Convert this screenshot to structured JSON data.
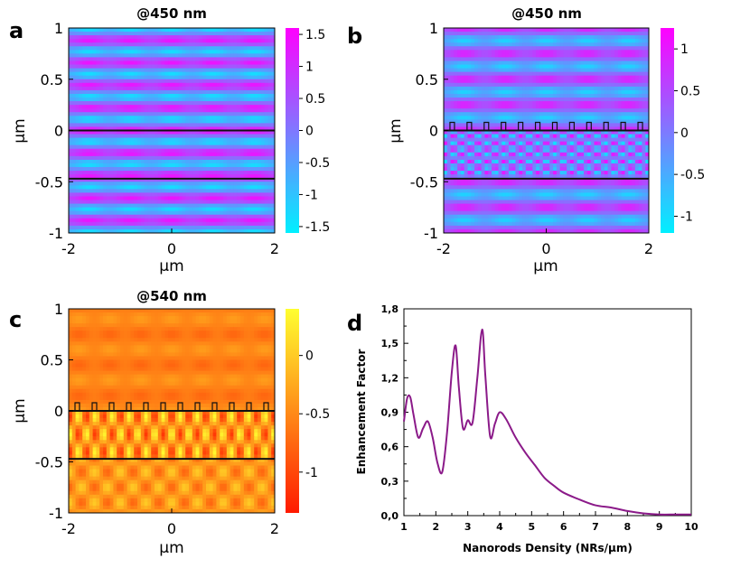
{
  "figure": {
    "panel_labels": [
      "a",
      "b",
      "c",
      "d"
    ]
  },
  "chart_data": [
    {
      "panel": "a",
      "type": "heatmap",
      "title": "@450 nm",
      "xlabel": "μm",
      "ylabel": "μm",
      "xlim": [
        -2,
        2
      ],
      "ylim": [
        -1,
        1
      ],
      "xticks": [
        -2,
        0,
        2
      ],
      "yticks": [
        1,
        0.5,
        0,
        -0.5,
        -1
      ],
      "colorbar": {
        "ticks": [
          1.5,
          1,
          0.5,
          0,
          -0.5,
          -1,
          -1.5
        ],
        "range": [
          -1.6,
          1.6
        ],
        "colors": [
          "#00f0ff",
          "#ff00ff"
        ]
      },
      "interface_lines_y": [
        0,
        -0.47
      ],
      "nanorods": false,
      "field_period_y": 0.22,
      "field_period_x": 0.8
    },
    {
      "panel": "b",
      "type": "heatmap",
      "title": "@450 nm",
      "xlabel": "μm",
      "ylabel": "μm",
      "xlim": [
        -2,
        2
      ],
      "ylim": [
        -1,
        1
      ],
      "xticks": [
        -2,
        0,
        2
      ],
      "yticks": [
        1,
        0.5,
        0,
        -0.5,
        -1
      ],
      "colorbar": {
        "ticks": [
          1,
          0.5,
          0,
          -0.5,
          -1
        ],
        "range": [
          -1.2,
          1.25
        ],
        "colors": [
          "#00f0ff",
          "#ff00ff"
        ]
      },
      "interface_lines_y": [
        0,
        -0.47
      ],
      "nanorods": true,
      "nanorod_count": 12,
      "field_period_y": 0.25,
      "field_period_x": 0.8
    },
    {
      "panel": "c",
      "type": "heatmap",
      "title": "@540 nm",
      "xlabel": "μm",
      "ylabel": "μm",
      "xlim": [
        -2,
        2
      ],
      "ylim": [
        -1,
        1
      ],
      "xticks": [
        -2,
        0,
        2
      ],
      "yticks": [
        1,
        0.5,
        0,
        -0.5,
        -1
      ],
      "colorbar": {
        "ticks": [
          0,
          -0.5,
          -1
        ],
        "range": [
          -1.35,
          0.4
        ],
        "colors": [
          "#ff1a00",
          "#ffff30"
        ]
      },
      "interface_lines_y": [
        0,
        -0.47
      ],
      "nanorods": true,
      "nanorod_count": 12,
      "field_period_y": 0.3,
      "field_period_x": 0.33
    },
    {
      "panel": "d",
      "type": "line",
      "title": "",
      "xlabel": "Nanorods Density (NRs/μm)",
      "ylabel": "Enhancement Factor",
      "xlim": [
        1,
        10
      ],
      "ylim": [
        0,
        1.8
      ],
      "xticks": [
        "1",
        "2",
        "3",
        "4",
        "5",
        "6",
        "7",
        "8",
        "9",
        "10"
      ],
      "yticks": [
        "0,0",
        "0,3",
        "0,6",
        "0,9",
        "1,2",
        "1,5",
        "1,8"
      ],
      "color": "#8b1a89",
      "series": [
        {
          "name": "Enhancement Factor",
          "x": [
            1.0,
            1.1,
            1.2,
            1.3,
            1.45,
            1.6,
            1.75,
            1.9,
            2.05,
            2.2,
            2.35,
            2.5,
            2.62,
            2.72,
            2.85,
            3.0,
            3.15,
            3.3,
            3.45,
            3.55,
            3.7,
            3.85,
            4.0,
            4.2,
            4.5,
            4.8,
            5.1,
            5.4,
            5.7,
            6.0,
            6.5,
            7.0,
            7.5,
            8.0,
            8.5,
            9.0,
            9.5,
            10.0
          ],
          "values": [
            0.82,
            1.02,
            1.03,
            0.88,
            0.68,
            0.76,
            0.82,
            0.68,
            0.46,
            0.38,
            0.72,
            1.25,
            1.48,
            1.12,
            0.76,
            0.83,
            0.81,
            1.2,
            1.62,
            1.22,
            0.69,
            0.8,
            0.9,
            0.84,
            0.68,
            0.55,
            0.44,
            0.33,
            0.26,
            0.2,
            0.14,
            0.09,
            0.07,
            0.04,
            0.02,
            0.01,
            0.01,
            0.01
          ]
        }
      ]
    }
  ]
}
